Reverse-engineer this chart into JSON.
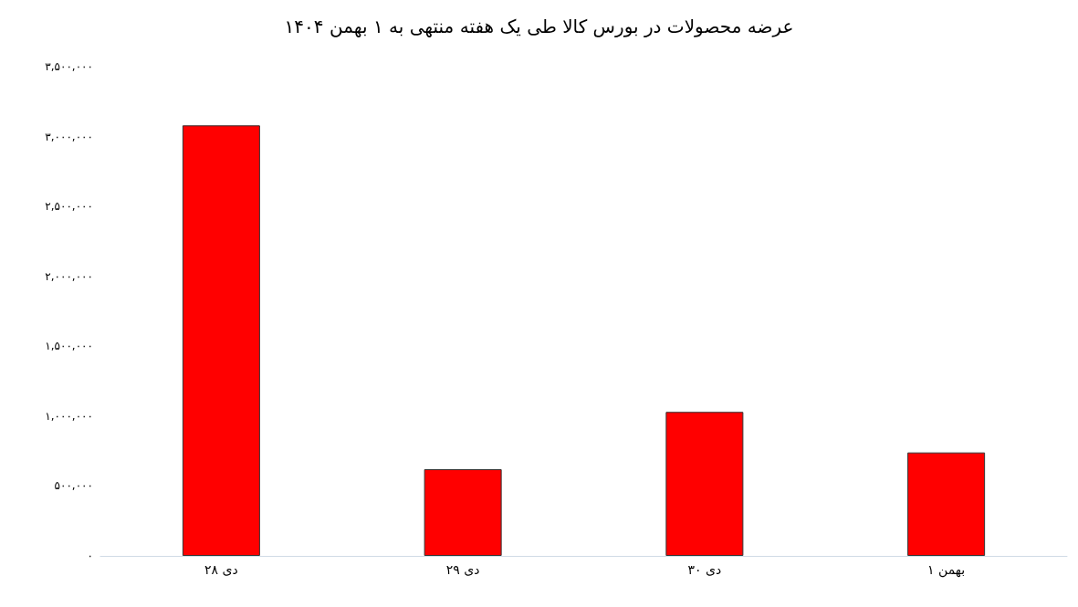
{
  "chart_data": {
    "type": "bar",
    "title": "عرضه محصولات در بورس کالا طی یک هفته منتهی به ۱ بهمن ۱۴۰۴",
    "categories": [
      "۲۸ دی",
      "۲۹ دی",
      "۳۰ دی",
      "۱ بهمن"
    ],
    "values": [
      3080000,
      620000,
      1030000,
      740000
    ],
    "color": "#ff0000",
    "ylim": [
      0,
      3500000
    ],
    "yticks": [
      {
        "value": 0,
        "label": "۰"
      },
      {
        "value": 500000,
        "label": "۵۰۰,۰۰۰"
      },
      {
        "value": 1000000,
        "label": "۱,۰۰۰,۰۰۰"
      },
      {
        "value": 1500000,
        "label": "۱,۵۰۰,۰۰۰"
      },
      {
        "value": 2000000,
        "label": "۲,۰۰۰,۰۰۰"
      },
      {
        "value": 2500000,
        "label": "۲,۵۰۰,۰۰۰"
      },
      {
        "value": 3000000,
        "label": "۳,۰۰۰,۰۰۰"
      },
      {
        "value": 3500000,
        "label": "۳,۵۰۰,۰۰۰"
      }
    ],
    "grid": false
  }
}
